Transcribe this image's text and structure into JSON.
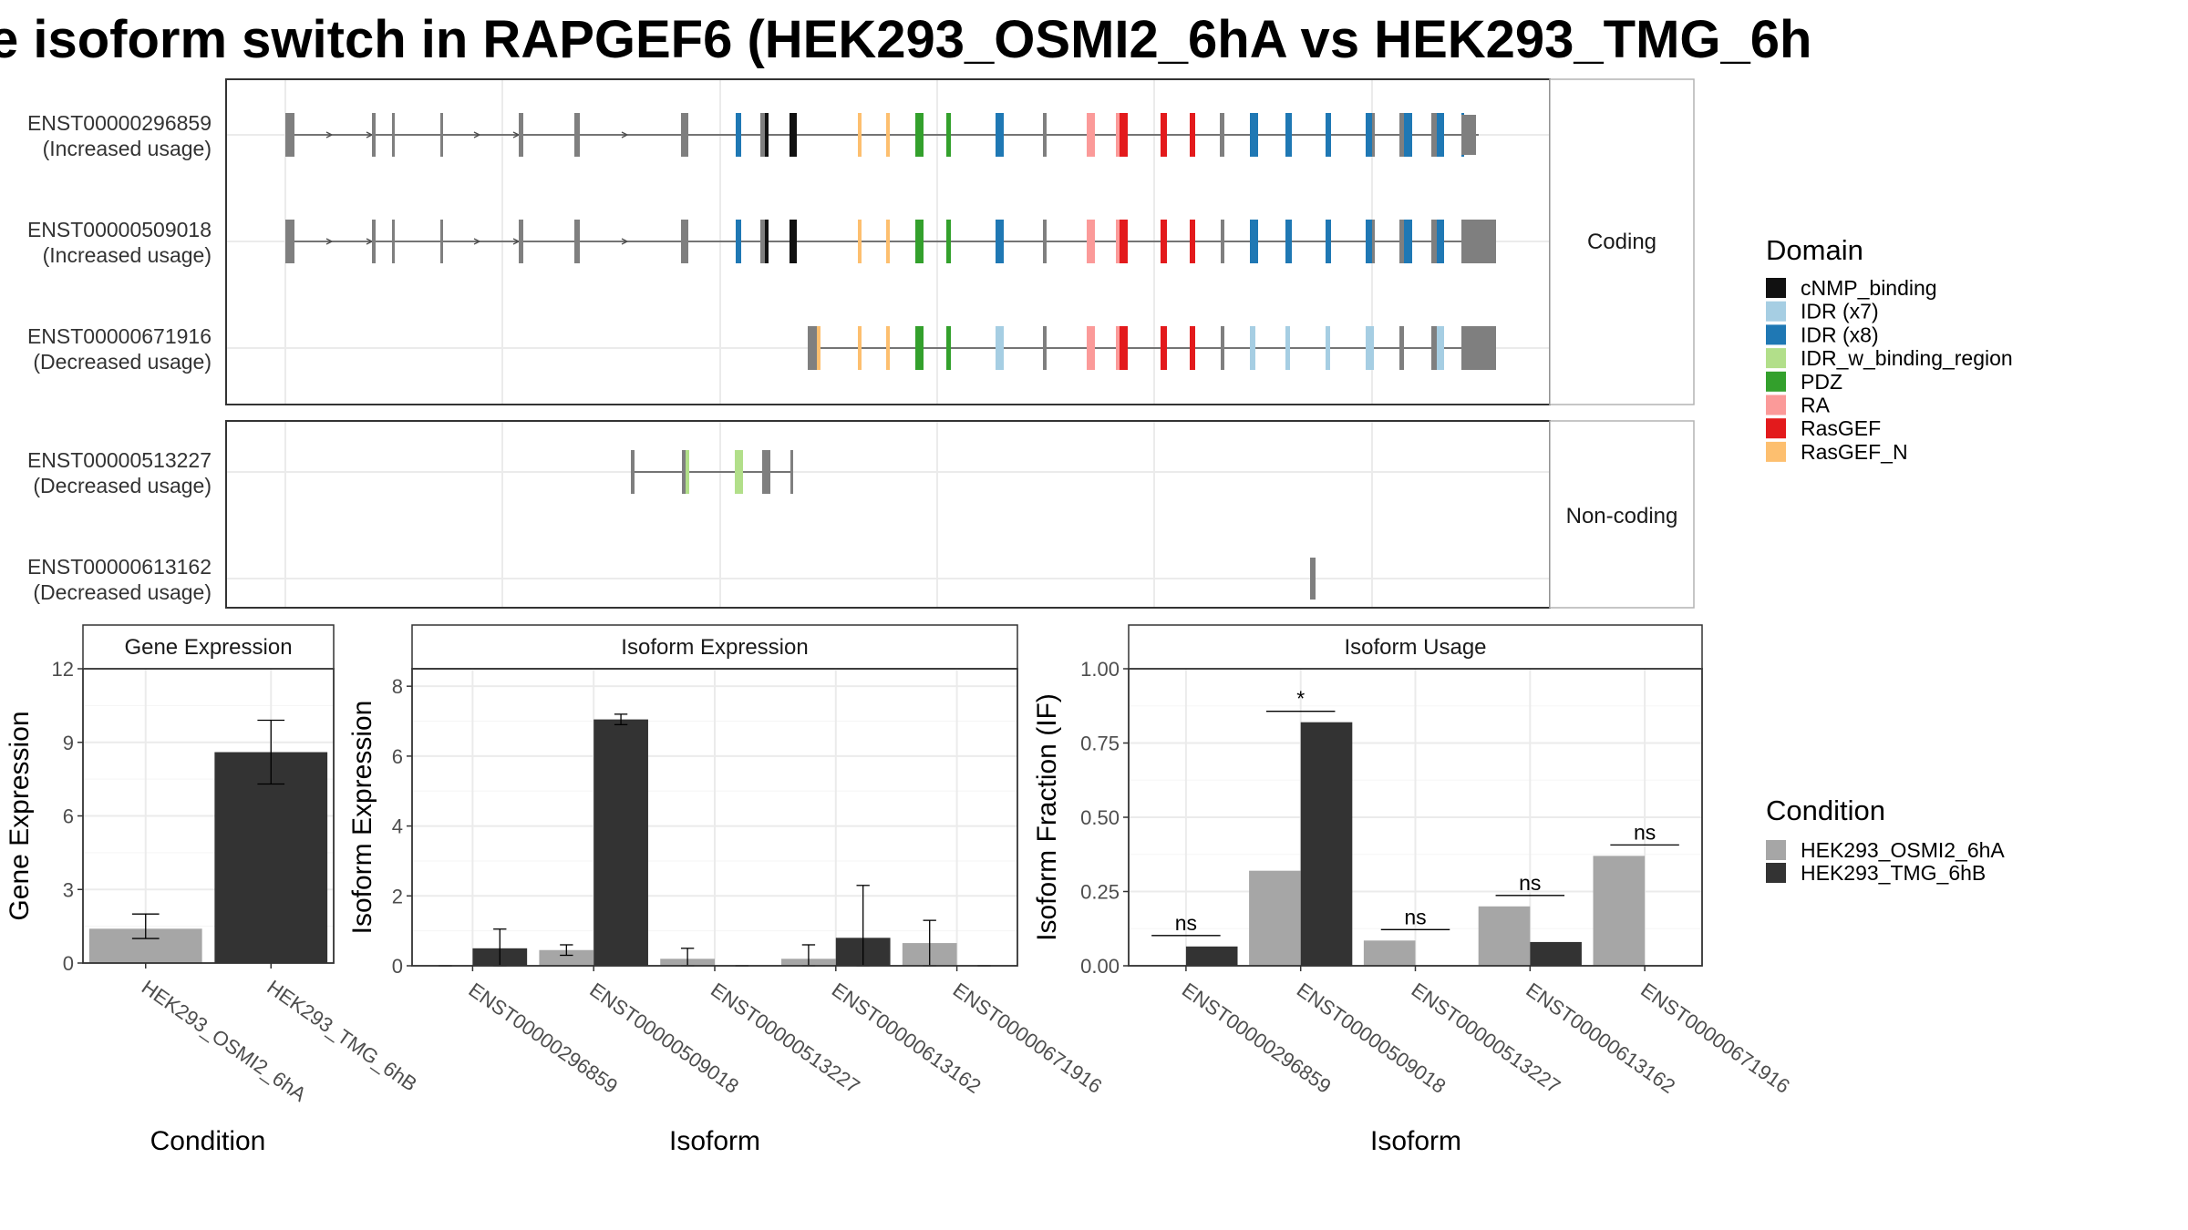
{
  "title": "e isoform switch in RAPGEF6 (HEK293_OSMI2_6hA vs HEK293_TMG_6h",
  "colors": {
    "exon": "#7f7f7f",
    "intron": "#4d4d4d",
    "panel_border": "#333333",
    "grid": "#ebebeb",
    "strip_bg": "#ffffff",
    "cond_A": "#a6a6a6",
    "cond_B": "#333333",
    "cnmp": "#111111",
    "idr7": "#a6cee3",
    "idr8": "#1f78b4",
    "idrbind": "#b2df8a",
    "pdz": "#33a02c",
    "ra": "#fb9a99",
    "rasgef": "#e31a1c",
    "rasgefn": "#fdbf6f"
  },
  "structure": {
    "coding_strip": "Coding",
    "noncoding_strip": "Non-coding",
    "transcripts": [
      {
        "id": "ENST00000296859",
        "usage": "(Increased usage)"
      },
      {
        "id": "ENST00000509018",
        "usage": "(Increased usage)"
      },
      {
        "id": "ENST00000671916",
        "usage": "(Decreased usage)"
      },
      {
        "id": "ENST00000513227",
        "usage": "(Decreased usage)"
      },
      {
        "id": "ENST00000613162",
        "usage": "(Decreased usage)"
      }
    ]
  },
  "domain_legend": {
    "title": "Domain",
    "items": [
      {
        "label": "cNMP_binding",
        "color": "#111111"
      },
      {
        "label": "IDR (x7)",
        "color": "#a6cee3"
      },
      {
        "label": "IDR (x8)",
        "color": "#1f78b4"
      },
      {
        "label": "IDR_w_binding_region",
        "color": "#b2df8a"
      },
      {
        "label": "PDZ",
        "color": "#33a02c"
      },
      {
        "label": "RA",
        "color": "#fb9a99"
      },
      {
        "label": "RasGEF",
        "color": "#e31a1c"
      },
      {
        "label": "RasGEF_N",
        "color": "#fdbf6f"
      }
    ]
  },
  "condition_legend": {
    "title": "Condition",
    "items": [
      {
        "label": "HEK293_OSMI2_6hA",
        "color": "#a6a6a6"
      },
      {
        "label": "HEK293_TMG_6hB",
        "color": "#333333"
      }
    ]
  },
  "chart_data": [
    {
      "type": "bar",
      "title": "Gene Expression",
      "xlabel": "Condition",
      "ylabel": "Gene Expression",
      "ylim": [
        0,
        12
      ],
      "yticks": [
        "0",
        "3",
        "6",
        "9",
        "12"
      ],
      "categories": [
        "HEK293_OSMI2_6hA",
        "HEK293_TMG_6hB"
      ],
      "values": [
        1.4,
        8.6
      ],
      "error_low": [
        1.0,
        7.3
      ],
      "error_high": [
        2.0,
        9.9
      ]
    },
    {
      "type": "bar",
      "title": "Isoform Expression",
      "xlabel": "Isoform",
      "ylabel": "Isoform Expression",
      "ylim": [
        0,
        8.5
      ],
      "yticks": [
        "0",
        "2",
        "4",
        "6",
        "8"
      ],
      "categories": [
        "ENST00000296859",
        "ENST00000509018",
        "ENST00000513227",
        "ENST00000613162",
        "ENST00000671916"
      ],
      "series": [
        {
          "name": "HEK293_OSMI2_6hA",
          "values": [
            0.0,
            0.45,
            0.2,
            0.2,
            0.65
          ],
          "error_low": [
            0.0,
            0.3,
            0.0,
            0.0,
            0.0
          ],
          "error_high": [
            0.0,
            0.6,
            0.5,
            0.6,
            1.3
          ]
        },
        {
          "name": "HEK293_TMG_6hB",
          "values": [
            0.5,
            7.05,
            0.0,
            0.8,
            0.0
          ],
          "error_low": [
            0.0,
            6.9,
            0.0,
            0.0,
            0.0
          ],
          "error_high": [
            1.05,
            7.2,
            0.0,
            2.3,
            0.0
          ]
        }
      ]
    },
    {
      "type": "bar",
      "title": "Isoform Usage",
      "xlabel": "Isoform",
      "ylabel": "Isoform Fraction (IF)",
      "ylim": [
        0,
        1.0
      ],
      "yticks": [
        "0.00",
        "0.25",
        "0.50",
        "0.75",
        "1.00"
      ],
      "categories": [
        "ENST00000296859",
        "ENST00000509018",
        "ENST00000513227",
        "ENST00000613162",
        "ENST00000671916"
      ],
      "series": [
        {
          "name": "HEK293_OSMI2_6hA",
          "values": [
            0.0,
            0.32,
            0.085,
            0.2,
            0.37
          ]
        },
        {
          "name": "HEK293_TMG_6hB",
          "values": [
            0.065,
            0.82,
            0.0,
            0.08,
            0.0
          ]
        }
      ],
      "significance": [
        "ns",
        "*",
        "ns",
        "ns",
        "ns"
      ]
    }
  ]
}
